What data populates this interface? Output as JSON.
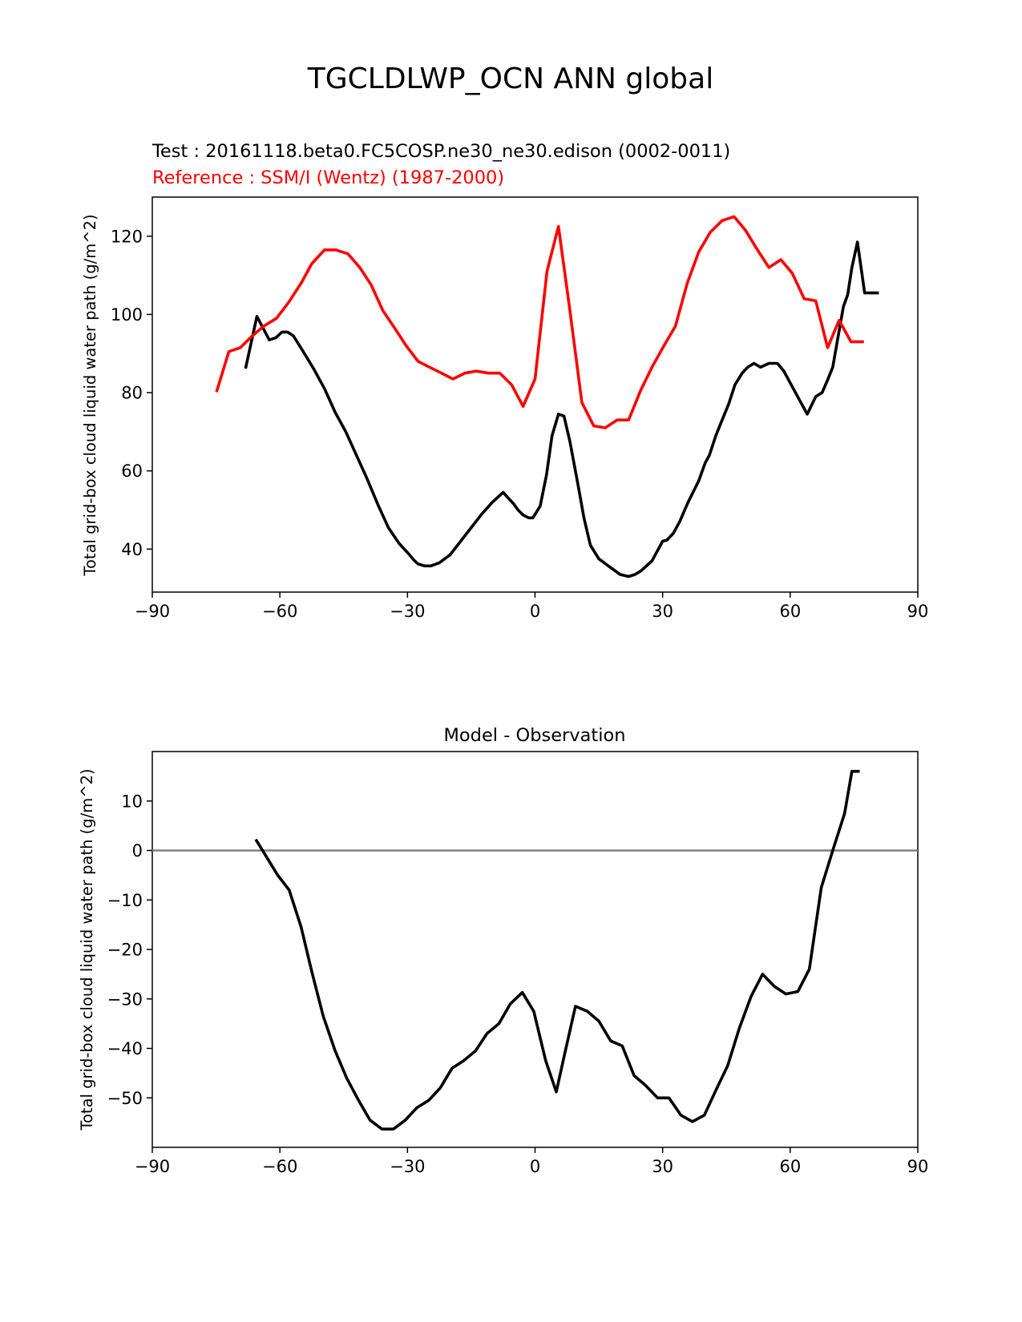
{
  "suptitle": "TGCLDLWP_OCN ANN global",
  "colors": {
    "test": "#000000",
    "reference": "#ff0000",
    "diff": "#000000",
    "zero_line": "#808080"
  },
  "chart_data": [
    {
      "type": "line",
      "title": "",
      "test_label": "Test : 20161118.beta0.FC5COSP.ne30_ne30.edison (0002-0011)",
      "reference_label": "Reference : SSM/I (Wentz) (1987-2000)",
      "xlabel": "",
      "ylabel": "Total grid-box cloud liquid water path (g/m^2)",
      "xlim": [
        -90,
        90
      ],
      "ylim": [
        29,
        130
      ],
      "xticks": [
        -90,
        -60,
        -30,
        0,
        30,
        60,
        90
      ],
      "xtick_labels": [
        "−90",
        "−60",
        "−30",
        "0",
        "30",
        "60",
        "90"
      ],
      "yticks": [
        40,
        60,
        80,
        100,
        120
      ],
      "ytick_labels": [
        "40",
        "60",
        "80",
        "100",
        "120"
      ],
      "series": [
        {
          "id": "test",
          "x": [
            -68.0,
            -65.4,
            -62.5,
            -61.0,
            -59.5,
            -58.2,
            -56.8,
            -54.5,
            -52.0,
            -49.5,
            -47.0,
            -44.5,
            -42.0,
            -39.5,
            -37.0,
            -34.5,
            -32.0,
            -29.5,
            -28.5,
            -27.5,
            -26.0,
            -24.5,
            -22.5,
            -20.0,
            -17.5,
            -15.0,
            -12.5,
            -10.0,
            -7.5,
            -5.0,
            -4.0,
            -2.8,
            -1.5,
            -0.5,
            1.2,
            2.7,
            4.0,
            5.5,
            6.8,
            8.2,
            10.0,
            11.5,
            13.0,
            15.0,
            17.5,
            20.0,
            22.0,
            23.5,
            25.0,
            27.5,
            30.0,
            31.0,
            32.5,
            34.0,
            36.0,
            38.5,
            40.0,
            41.0,
            42.5,
            44.0,
            45.5,
            47.0,
            48.7,
            50.0,
            51.5,
            53.0,
            55.0,
            57.0,
            58.5,
            60.0,
            62.5,
            64.0,
            66.0,
            67.5,
            68.7,
            70.0,
            71.2,
            72.5,
            73.5,
            74.5,
            75.8,
            77.5,
            79.0,
            80.5
          ],
          "y": [
            86.5,
            99.5,
            93.5,
            94.0,
            95.5,
            95.5,
            94.5,
            90.5,
            86.0,
            81.0,
            75.0,
            70.0,
            64.0,
            58.0,
            51.5,
            45.5,
            41.5,
            38.5,
            37.2,
            36.2,
            35.7,
            35.7,
            36.5,
            38.5,
            42.0,
            45.5,
            49.0,
            52.0,
            54.5,
            51.5,
            50.0,
            48.7,
            48.0,
            48.0,
            51.0,
            59.0,
            69.0,
            74.5,
            74.0,
            67.5,
            57.0,
            48.0,
            41.0,
            37.5,
            35.5,
            33.5,
            33.0,
            33.5,
            34.5,
            37.0,
            42.0,
            42.3,
            44.0,
            47.0,
            52.0,
            57.5,
            62.0,
            64.0,
            69.0,
            73.0,
            77.0,
            82.0,
            85.0,
            86.5,
            87.5,
            86.5,
            87.5,
            87.5,
            85.5,
            82.5,
            77.5,
            74.5,
            79.0,
            80.0,
            83.0,
            86.5,
            94.0,
            102.0,
            105.0,
            112.0,
            118.5,
            105.5,
            105.5,
            105.5
          ]
        },
        {
          "id": "reference",
          "x": [
            -74.8,
            -72.0,
            -69.3,
            -66.5,
            -63.8,
            -60.8,
            -58.0,
            -55.0,
            -52.5,
            -49.5,
            -46.8,
            -44.0,
            -41.2,
            -38.5,
            -35.8,
            -33.0,
            -30.3,
            -27.5,
            -24.8,
            -22.0,
            -19.3,
            -16.5,
            -13.8,
            -11.0,
            -8.3,
            -5.5,
            -2.8,
            0.0,
            2.8,
            5.5,
            8.2,
            11.0,
            13.8,
            16.5,
            19.3,
            22.0,
            24.8,
            27.5,
            30.3,
            33.0,
            35.8,
            38.5,
            41.2,
            44.0,
            46.8,
            49.5,
            52.3,
            55.0,
            57.8,
            60.5,
            63.3,
            66.0,
            68.8,
            71.5,
            74.3,
            77.0
          ],
          "y": [
            80.5,
            90.5,
            91.5,
            94.5,
            97.0,
            99.0,
            103.0,
            108.0,
            113.0,
            116.5,
            116.5,
            115.5,
            112.0,
            107.5,
            101.0,
            96.5,
            92.0,
            88.0,
            86.5,
            85.0,
            83.5,
            85.0,
            85.5,
            85.0,
            85.0,
            82.0,
            76.5,
            83.5,
            111.0,
            122.5,
            101.0,
            77.5,
            71.5,
            71.0,
            73.0,
            73.0,
            80.5,
            86.5,
            92.0,
            97.0,
            108.0,
            116.0,
            121.0,
            124.0,
            125.0,
            121.5,
            116.5,
            112.0,
            114.0,
            110.5,
            104.0,
            103.5,
            91.5,
            98.5,
            93.0,
            93.0
          ]
        }
      ]
    },
    {
      "type": "line",
      "title": "Model - Observation",
      "xlabel": "",
      "ylabel": "Total grid-box cloud liquid water path (g/m^2)",
      "xlim": [
        -90,
        90
      ],
      "ylim": [
        -60,
        20
      ],
      "xticks": [
        -90,
        -60,
        -30,
        0,
        30,
        60,
        90
      ],
      "xtick_labels": [
        "−90",
        "−60",
        "−30",
        "0",
        "30",
        "60",
        "90"
      ],
      "yticks": [
        -50,
        -40,
        -30,
        -20,
        -10,
        0,
        10
      ],
      "ytick_labels": [
        "−50",
        "−40",
        "−30",
        "−20",
        "−10",
        "0",
        "10"
      ],
      "zero_line": 0,
      "series": [
        {
          "id": "diff",
          "x": [
            -65.5,
            -63.0,
            -60.5,
            -57.8,
            -55.0,
            -52.5,
            -49.8,
            -47.0,
            -44.3,
            -41.5,
            -38.8,
            -36.0,
            -33.3,
            -30.5,
            -27.8,
            -25.0,
            -22.3,
            -19.5,
            -16.8,
            -14.0,
            -11.3,
            -8.5,
            -5.8,
            -3.0,
            -0.3,
            2.5,
            5.0,
            7.0,
            9.5,
            12.3,
            15.0,
            17.8,
            20.5,
            23.3,
            26.0,
            28.8,
            31.5,
            34.3,
            37.0,
            39.8,
            42.5,
            45.3,
            48.0,
            50.8,
            53.5,
            56.3,
            59.0,
            61.8,
            64.5,
            67.3,
            70.0,
            72.8,
            74.5,
            76.0
          ],
          "y": [
            2.0,
            -1.5,
            -5.0,
            -8.0,
            -15.5,
            -24.5,
            -33.5,
            -40.5,
            -46.0,
            -50.5,
            -54.5,
            -56.3,
            -56.3,
            -54.5,
            -52.0,
            -50.5,
            -48.0,
            -44.0,
            -42.5,
            -40.5,
            -37.0,
            -35.0,
            -31.0,
            -28.7,
            -32.5,
            -42.5,
            -48.8,
            -41.0,
            -31.5,
            -32.5,
            -34.5,
            -38.5,
            -39.5,
            -45.5,
            -47.5,
            -50.0,
            -50.0,
            -53.5,
            -54.8,
            -53.5,
            -48.5,
            -43.5,
            -36.0,
            -29.5,
            -25.0,
            -27.5,
            -29.0,
            -28.5,
            -24.0,
            -7.5,
            0.0,
            7.5,
            16.0,
            16.0
          ]
        }
      ]
    }
  ]
}
